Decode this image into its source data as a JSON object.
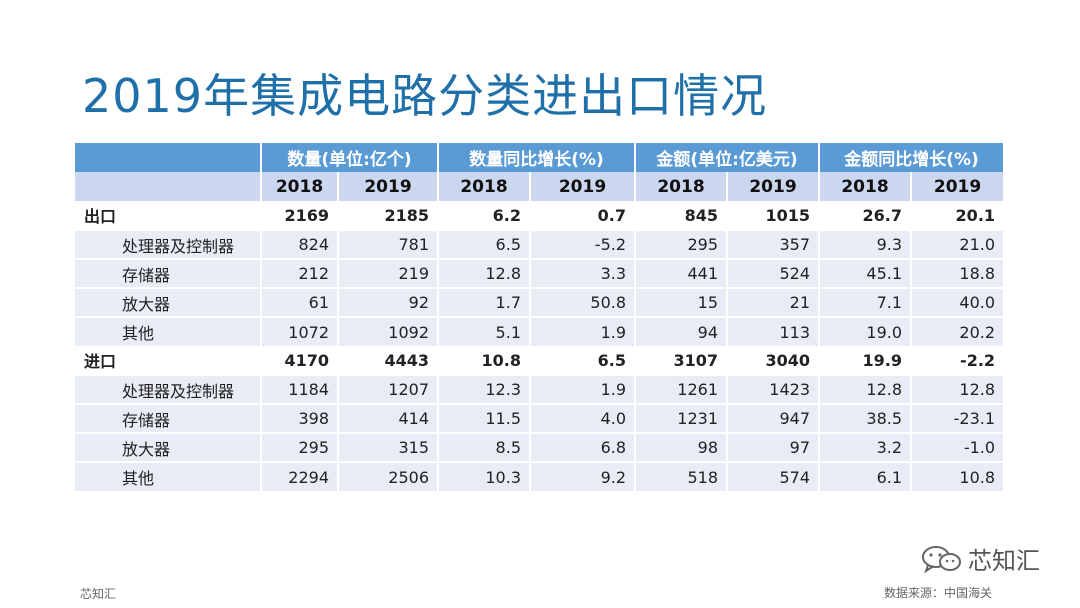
{
  "title": "2019年集成电路分类进出口情况",
  "table": {
    "group_headers": [
      "数量(单位:亿个)",
      "数量同比增长(%)",
      "金额(单位:亿美元)",
      "金额同比增长(%)"
    ],
    "year_headers": [
      "2018",
      "2019",
      "2018",
      "2019",
      "2018",
      "2019",
      "2018",
      "2019"
    ],
    "rows": [
      {
        "type": "total",
        "name": "出口",
        "values": [
          "2169",
          "2185",
          "6.2",
          "0.7",
          "845",
          "1015",
          "26.7",
          "20.1"
        ]
      },
      {
        "type": "sub",
        "name": "处理器及控制器",
        "values": [
          "824",
          "781",
          "6.5",
          "-5.2",
          "295",
          "357",
          "9.3",
          "21.0"
        ]
      },
      {
        "type": "sub",
        "name": "存储器",
        "values": [
          "212",
          "219",
          "12.8",
          "3.3",
          "441",
          "524",
          "45.1",
          "18.8"
        ]
      },
      {
        "type": "sub",
        "name": "放大器",
        "values": [
          "61",
          "92",
          "1.7",
          "50.8",
          "15",
          "21",
          "7.1",
          "40.0"
        ]
      },
      {
        "type": "sub",
        "name": "其他",
        "values": [
          "1072",
          "1092",
          "5.1",
          "1.9",
          "94",
          "113",
          "19.0",
          "20.2"
        ]
      },
      {
        "type": "total",
        "name": "进口",
        "values": [
          "4170",
          "4443",
          "10.8",
          "6.5",
          "3107",
          "3040",
          "19.9",
          "-2.2"
        ]
      },
      {
        "type": "sub",
        "name": "处理器及控制器",
        "values": [
          "1184",
          "1207",
          "12.3",
          "1.9",
          "1261",
          "1423",
          "12.8",
          "12.8"
        ]
      },
      {
        "type": "sub",
        "name": "存储器",
        "values": [
          "398",
          "414",
          "11.5",
          "4.0",
          "1231",
          "947",
          "38.5",
          "-23.1"
        ]
      },
      {
        "type": "sub",
        "name": "放大器",
        "values": [
          "295",
          "315",
          "8.5",
          "6.8",
          "98",
          "97",
          "3.2",
          "-1.0"
        ]
      },
      {
        "type": "sub",
        "name": "其他",
        "values": [
          "2294",
          "2506",
          "10.3",
          "9.2",
          "518",
          "574",
          "6.1",
          "10.8"
        ]
      }
    ]
  },
  "watermark": {
    "text": "芯知汇",
    "icon": "wechat-icon"
  },
  "footer": {
    "left": "芯知汇",
    "source": "数据来源：中国海关"
  }
}
